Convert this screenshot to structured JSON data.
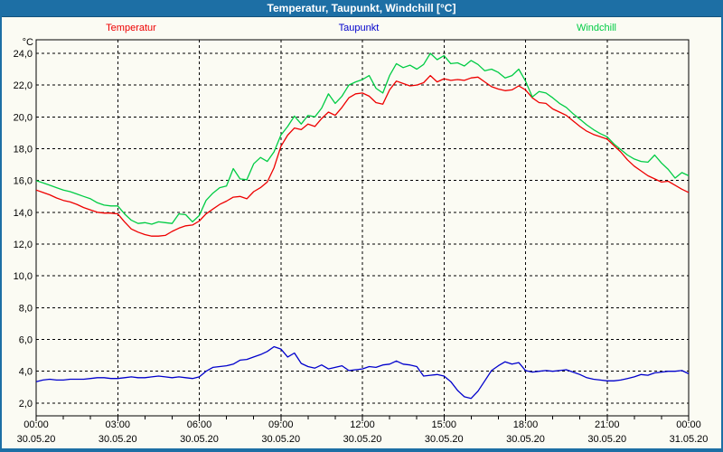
{
  "window": {
    "title": "Temperatur, Taupunkt, Windchill [°C]"
  },
  "colors": {
    "titlebar": "#1d6fa5",
    "window_border": "#1d6fa5",
    "background": "#fbfbf3",
    "grid": "#000000",
    "temperatur": "#ee0000",
    "taupunkt": "#0000cc",
    "windchill": "#00cc44"
  },
  "chart_data": {
    "type": "line",
    "title": "Temperatur, Taupunkt, Windchill [°C]",
    "ylabel": "°C",
    "ylim": [
      1.2,
      24.85
    ],
    "grid": true,
    "legend_position": "top",
    "x_unit": "hours",
    "t_start_hours": 0,
    "t_step_hours": 0.25,
    "x_ticks": [
      {
        "time": "00:00",
        "date": "30.05.20"
      },
      {
        "time": "03:00",
        "date": "30.05.20"
      },
      {
        "time": "06:00",
        "date": "30.05.20"
      },
      {
        "time": "09:00",
        "date": "30.05.20"
      },
      {
        "time": "12:00",
        "date": "30.05.20"
      },
      {
        "time": "15:00",
        "date": "30.05.20"
      },
      {
        "time": "18:00",
        "date": "30.05.20"
      },
      {
        "time": "21:00",
        "date": "30.05.20"
      },
      {
        "time": "00:00",
        "date": "31.05.20"
      }
    ],
    "y_ticks": [
      {
        "value": 24,
        "label": "24,0"
      },
      {
        "value": 22,
        "label": "22,0"
      },
      {
        "value": 20,
        "label": "20,0"
      },
      {
        "value": 18,
        "label": "18,0"
      },
      {
        "value": 16,
        "label": "16,0"
      },
      {
        "value": 14,
        "label": "14,0"
      },
      {
        "value": 12,
        "label": "12,0"
      },
      {
        "value": 10,
        "label": "10,0"
      },
      {
        "value": 8,
        "label": "8,0"
      },
      {
        "value": 6,
        "label": "6,0"
      },
      {
        "value": 4,
        "label": "4,0"
      },
      {
        "value": 2,
        "label": "2,0"
      }
    ],
    "series": [
      {
        "name": "Temperatur",
        "color": "#ee0000",
        "values": [
          15.4,
          15.25,
          15.1,
          14.9,
          14.75,
          14.65,
          14.5,
          14.3,
          14.15,
          14.0,
          13.95,
          13.95,
          13.9,
          13.4,
          12.95,
          12.75,
          12.6,
          12.5,
          12.5,
          12.55,
          12.8,
          13.0,
          13.15,
          13.2,
          13.45,
          13.9,
          14.2,
          14.5,
          14.7,
          14.95,
          15.0,
          14.85,
          15.3,
          15.55,
          15.9,
          16.8,
          18.15,
          18.85,
          19.3,
          19.2,
          19.55,
          19.4,
          19.9,
          20.3,
          20.1,
          20.6,
          21.2,
          21.45,
          21.5,
          21.3,
          20.9,
          20.8,
          21.7,
          22.25,
          22.1,
          21.95,
          22.0,
          22.15,
          22.6,
          22.2,
          22.4,
          22.3,
          22.35,
          22.3,
          22.45,
          22.5,
          22.2,
          21.9,
          21.75,
          21.65,
          21.7,
          21.95,
          21.7,
          21.2,
          20.9,
          20.85,
          20.5,
          20.3,
          20.1,
          19.75,
          19.4,
          19.1,
          18.9,
          18.75,
          18.6,
          18.2,
          17.8,
          17.3,
          16.9,
          16.6,
          16.3,
          16.1,
          15.9,
          15.95,
          15.7,
          15.45,
          15.25
        ]
      },
      {
        "name": "Taupunkt",
        "color": "#0000cc",
        "values": [
          3.35,
          3.45,
          3.5,
          3.45,
          3.45,
          3.5,
          3.5,
          3.5,
          3.55,
          3.6,
          3.6,
          3.55,
          3.55,
          3.6,
          3.65,
          3.6,
          3.6,
          3.65,
          3.7,
          3.65,
          3.6,
          3.65,
          3.6,
          3.55,
          3.65,
          4.0,
          4.25,
          4.3,
          4.35,
          4.45,
          4.7,
          4.75,
          4.9,
          5.05,
          5.25,
          5.55,
          5.4,
          4.9,
          5.15,
          4.5,
          4.3,
          4.2,
          4.4,
          4.15,
          4.25,
          4.35,
          4.05,
          4.1,
          4.15,
          4.3,
          4.25,
          4.4,
          4.45,
          4.65,
          4.45,
          4.4,
          4.3,
          3.7,
          3.75,
          3.8,
          3.7,
          3.35,
          2.8,
          2.4,
          2.3,
          2.75,
          3.4,
          4.05,
          4.35,
          4.6,
          4.45,
          4.55,
          4.05,
          3.95,
          4.0,
          4.05,
          4.0,
          4.05,
          4.1,
          3.95,
          3.8,
          3.6,
          3.5,
          3.45,
          3.4,
          3.4,
          3.45,
          3.55,
          3.65,
          3.8,
          3.75,
          3.9,
          3.95,
          4.0,
          4.0,
          4.05,
          3.85
        ]
      },
      {
        "name": "Windchill",
        "color": "#00cc44",
        "values": [
          16.0,
          15.85,
          15.7,
          15.55,
          15.4,
          15.3,
          15.15,
          15.0,
          14.85,
          14.6,
          14.45,
          14.4,
          14.4,
          13.9,
          13.5,
          13.3,
          13.35,
          13.25,
          13.4,
          13.35,
          13.3,
          13.9,
          13.85,
          13.4,
          13.8,
          14.75,
          15.2,
          15.55,
          15.65,
          16.75,
          16.1,
          16.05,
          17.05,
          17.45,
          17.2,
          17.8,
          18.85,
          19.4,
          20.05,
          19.55,
          20.1,
          20.0,
          20.55,
          21.45,
          20.85,
          21.3,
          22.0,
          22.2,
          22.35,
          22.6,
          21.8,
          21.5,
          22.6,
          23.35,
          23.1,
          23.25,
          23.0,
          23.3,
          24.0,
          23.6,
          23.85,
          23.35,
          23.4,
          23.2,
          23.55,
          23.3,
          22.9,
          23.0,
          22.8,
          22.45,
          22.6,
          23.0,
          22.25,
          21.25,
          21.6,
          21.5,
          21.2,
          20.85,
          20.6,
          20.2,
          19.85,
          19.5,
          19.2,
          18.95,
          18.75,
          18.3,
          17.95,
          17.6,
          17.35,
          17.2,
          17.15,
          17.6,
          17.1,
          16.7,
          16.15,
          16.5,
          16.3
        ]
      }
    ]
  }
}
